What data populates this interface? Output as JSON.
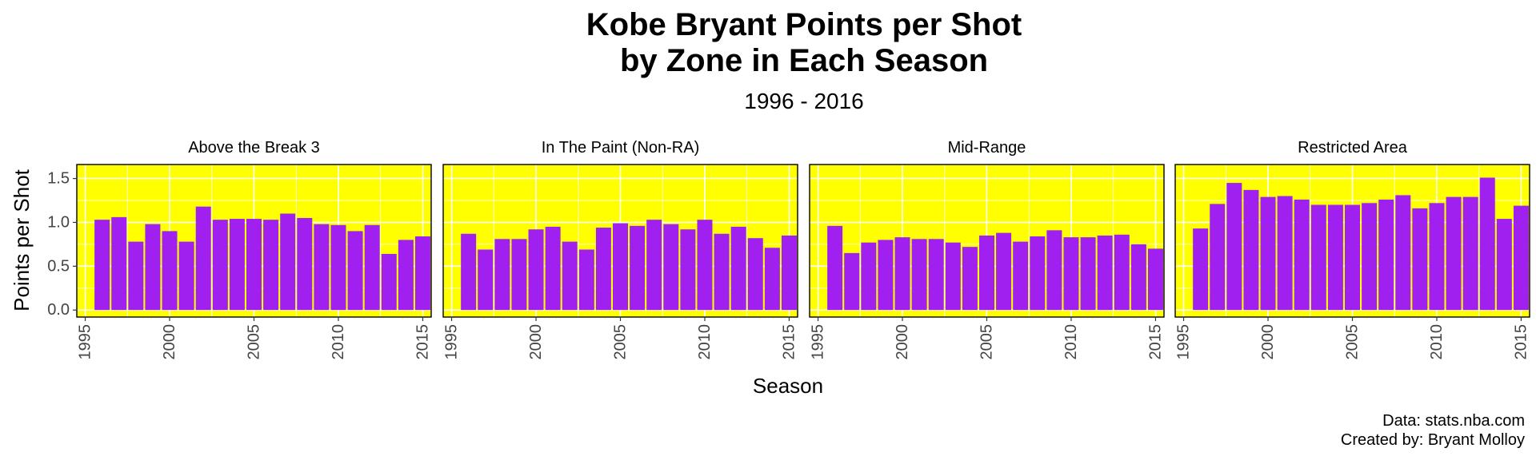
{
  "chart_data": {
    "type": "bar",
    "title": "Kobe Bryant Points per Shot\n by Zone in Each Season",
    "title_lines": [
      "Kobe Bryant Points per Shot",
      "by Zone in Each Season"
    ],
    "subtitle": "1996 - 2016",
    "xlabel": "Season",
    "ylabel": "Points per Shot",
    "caption_lines": [
      "Data: stats.nba.com",
      "Created by: Bryant Molloy"
    ],
    "x": [
      1996,
      1997,
      1998,
      1999,
      2000,
      2001,
      2002,
      2003,
      2004,
      2005,
      2006,
      2007,
      2008,
      2009,
      2010,
      2011,
      2012,
      2013,
      2014,
      2015
    ],
    "xticks": [
      1995,
      2000,
      2005,
      2010,
      2015
    ],
    "yticks": [
      0.0,
      0.5,
      1.0,
      1.5
    ],
    "ytick_labels": [
      "0.0",
      "0.5",
      "1.0",
      "1.5"
    ],
    "xlim": [
      1994.5,
      2015.5
    ],
    "ylim": [
      -0.08,
      1.66
    ],
    "grid": true,
    "colors": {
      "bar": "#a020f0",
      "panel_bg": "#ffff00",
      "grid": "#ffffff"
    },
    "facets": [
      {
        "name": "Above the Break 3",
        "values": [
          1.03,
          1.06,
          0.78,
          0.98,
          0.9,
          0.78,
          1.18,
          1.03,
          1.04,
          1.04,
          1.03,
          1.1,
          1.05,
          0.98,
          0.97,
          0.9,
          0.97,
          0.64,
          0.8,
          0.84
        ]
      },
      {
        "name": "In The Paint (Non-RA)",
        "values": [
          0.87,
          0.69,
          0.81,
          0.81,
          0.92,
          0.95,
          0.78,
          0.69,
          0.94,
          0.99,
          0.96,
          1.03,
          0.98,
          0.92,
          1.03,
          0.87,
          0.95,
          0.82,
          0.71,
          0.85
        ]
      },
      {
        "name": "Mid-Range",
        "values": [
          0.96,
          0.65,
          0.77,
          0.8,
          0.83,
          0.81,
          0.81,
          0.77,
          0.72,
          0.85,
          0.88,
          0.78,
          0.84,
          0.91,
          0.83,
          0.83,
          0.85,
          0.86,
          0.75,
          0.7
        ]
      },
      {
        "name": "Restricted Area",
        "values": [
          0.93,
          1.21,
          1.45,
          1.37,
          1.29,
          1.3,
          1.26,
          1.2,
          1.2,
          1.2,
          1.22,
          1.26,
          1.31,
          1.16,
          1.22,
          1.29,
          1.29,
          1.51,
          1.04,
          1.19
        ]
      }
    ]
  }
}
